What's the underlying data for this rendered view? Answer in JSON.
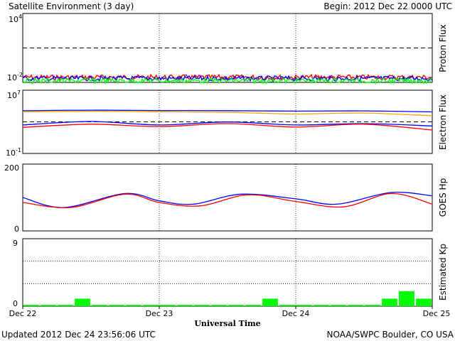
{
  "header": {
    "title": "Satellite Environment (3 day)",
    "begin": "Begin:  2012 Dec 22 0000 UTC"
  },
  "footer": {
    "updated": "Updated 2012 Dec 24 23:56:06 UTC",
    "credit": "NOAA/SWPC Boulder, CO USA"
  },
  "xaxis": {
    "title": "Universal Time",
    "ticks": [
      "Dec 22",
      "Dec 23",
      "Dec 24",
      "Dec 25"
    ]
  },
  "colors": {
    "red": "#ff0000",
    "blue": "#0000ff",
    "green": "#00ff00",
    "orange": "#ffa500"
  },
  "chart_data": [
    {
      "type": "line",
      "ylabel": "Proton Flux",
      "yscale": "log",
      "ylim_exp": [
        -2,
        4
      ],
      "ytick_labels": [
        {
          "base": "10",
          "exp": "4"
        },
        {
          "base": "10",
          "exp": "-2"
        }
      ],
      "threshold": 10,
      "series": [
        {
          "color": "#ff0000",
          "level": 0.028
        },
        {
          "color": "#0000ff",
          "level": 0.022
        },
        {
          "color": "#00ff00",
          "level": 0.014
        }
      ]
    },
    {
      "type": "line",
      "ylabel": "Electron Flux",
      "yscale": "log",
      "ylim_exp": [
        -1,
        7
      ],
      "ytick_labels": [
        {
          "base": "10",
          "exp": "7"
        },
        {
          "base": "10",
          "exp": "-1"
        }
      ],
      "threshold": 1000,
      "series": [
        {
          "color": "#0000ff",
          "x": [
            0,
            0.5,
            1,
            1.5,
            2,
            2.5,
            3
          ],
          "y": [
            25000,
            30000,
            27000,
            26000,
            23000,
            24000,
            18000
          ]
        },
        {
          "color": "#ffa500",
          "x": [
            0,
            0.5,
            1,
            1.5,
            2,
            2.5,
            3
          ],
          "y": [
            18000,
            22000,
            19000,
            16000,
            10000,
            13000,
            6000
          ]
        },
        {
          "color": "#0000ff",
          "x": [
            0,
            0.5,
            1,
            1.5,
            2,
            2.5,
            3
          ],
          "y": [
            400,
            1100,
            400,
            950,
            400,
            600,
            300
          ]
        },
        {
          "color": "#ff0000",
          "x": [
            0,
            0.5,
            1,
            1.5,
            2,
            2.5,
            3
          ],
          "y": [
            200,
            500,
            250,
            600,
            220,
            500,
            90
          ]
        }
      ]
    },
    {
      "type": "line",
      "ylabel": "GOES Hp",
      "ylim": [
        0,
        200
      ],
      "yticks": [
        "200",
        "0"
      ],
      "series": [
        {
          "color": "#0000ff",
          "x": [
            0,
            0.3,
            0.75,
            1.0,
            1.25,
            1.6,
            2.0,
            2.3,
            2.7,
            3.0
          ],
          "y": [
            100,
            70,
            112,
            90,
            80,
            110,
            96,
            80,
            115,
            105
          ]
        },
        {
          "color": "#ff0000",
          "x": [
            0,
            0.35,
            0.75,
            1.0,
            1.3,
            1.65,
            2.0,
            2.35,
            2.7,
            3.0
          ],
          "y": [
            85,
            70,
            110,
            85,
            75,
            108,
            88,
            72,
            112,
            80
          ]
        }
      ]
    },
    {
      "type": "bar",
      "ylabel": "Estimated Kp",
      "ylim": [
        0,
        9
      ],
      "yticks": [
        "9",
        "0"
      ],
      "bar_color": "#00ff00",
      "values": [
        0,
        0,
        0,
        1,
        0,
        0,
        0,
        0,
        0,
        0,
        0,
        0,
        0,
        0,
        1,
        0,
        0,
        0,
        0,
        0,
        0,
        1,
        2,
        1
      ]
    }
  ]
}
